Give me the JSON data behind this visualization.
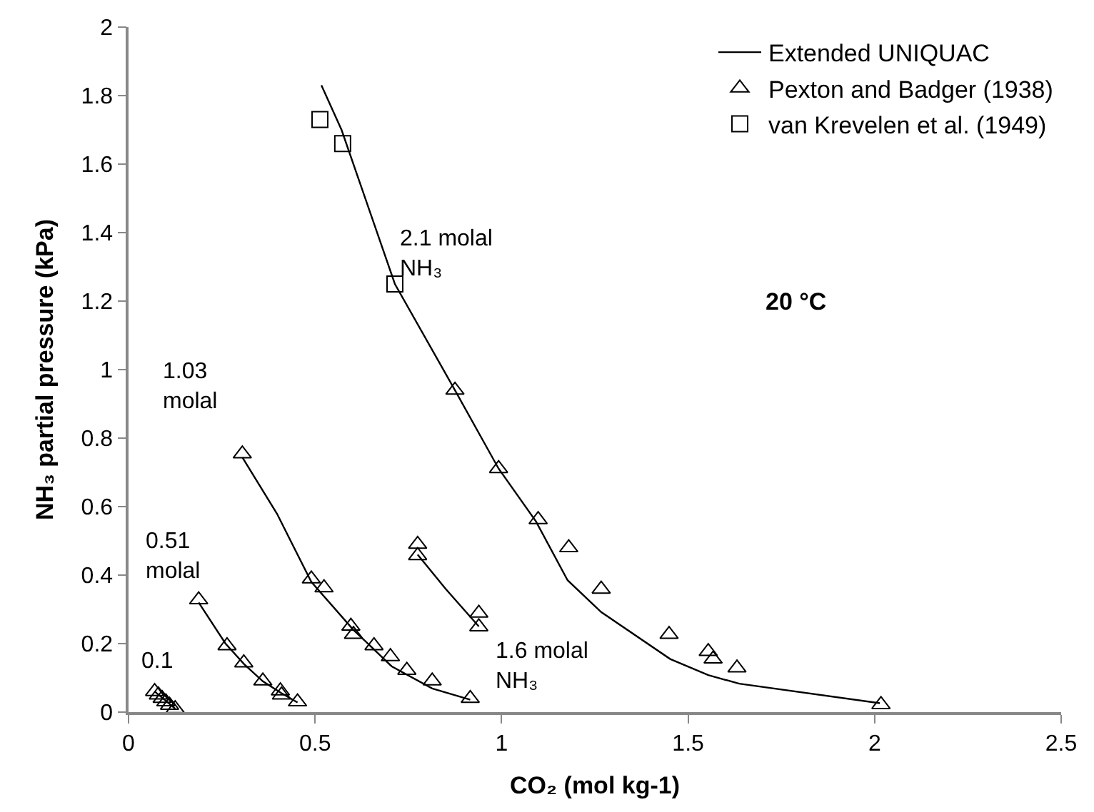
{
  "chart_data": {
    "type": "scatter",
    "xlabel": "CO₂ (mol kg-1)",
    "ylabel": "NH₃ partial pressure (kPa)",
    "xlim": [
      0,
      2.5
    ],
    "xticks": [
      0,
      0.5,
      1,
      1.5,
      2,
      2.5
    ],
    "ylim": [
      0,
      2
    ],
    "yticks": [
      0,
      0.2,
      0.4,
      0.6,
      0.8,
      1,
      1.2,
      1.4,
      1.6,
      1.8,
      2
    ],
    "legend": "top right",
    "series": [
      {
        "name": "Extended UNIQUAC",
        "type": "line",
        "color": "#000000",
        "marker": "none",
        "line_style": "solid",
        "x": [
          0.517,
          0.571,
          0.714,
          0.875,
          0.992,
          1.092,
          1.177,
          1.267,
          1.452,
          1.554,
          1.637,
          2.014
        ],
        "values": [
          1.83,
          1.7,
          1.25,
          0.94,
          0.711,
          0.557,
          0.385,
          0.292,
          0.155,
          0.108,
          0.083,
          0.026
        ]
      },
      {
        "type": "line",
        "color": "#000000",
        "marker": "none",
        "line_style": "solid",
        "x": [
          0.775,
          0.85,
          0.939
        ],
        "values": [
          0.46,
          0.36,
          0.25
        ]
      },
      {
        "type": "line",
        "color": "#000000",
        "marker": "none",
        "line_style": "solid",
        "x": [
          0.305,
          0.398,
          0.49,
          0.603,
          0.705,
          0.814,
          0.916
        ],
        "values": [
          0.744,
          0.579,
          0.38,
          0.24,
          0.134,
          0.069,
          0.036
        ]
      },
      {
        "type": "line",
        "color": "#000000",
        "marker": "none",
        "line_style": "solid",
        "x": [
          0.188,
          0.26,
          0.31,
          0.36,
          0.41,
          0.453
        ],
        "values": [
          0.32,
          0.2,
          0.14,
          0.09,
          0.055,
          0.028
        ]
      },
      {
        "type": "line",
        "color": "#000000",
        "marker": "none",
        "line_style": "solid",
        "x": [
          0.07,
          0.125
        ],
        "values": [
          0.06,
          0.01
        ]
      },
      {
        "name": "Pexton and Badger (1938)",
        "color": "#000000",
        "marker": "triangle",
        "x": [
          0.875,
          0.992,
          1.098,
          1.18,
          1.267,
          1.449,
          1.554,
          1.567,
          1.631,
          2.017,
          0.775,
          0.775,
          0.939,
          0.939,
          0.305,
          0.49,
          0.524,
          0.596,
          0.603,
          0.658,
          0.702,
          0.746,
          0.814,
          0.916,
          0.188,
          0.264,
          0.309,
          0.36,
          0.407,
          0.41,
          0.453,
          0.07,
          0.08,
          0.09,
          0.1,
          0.11,
          0.125
        ],
        "values": [
          0.94,
          0.711,
          0.562,
          0.48,
          0.359,
          0.227,
          0.177,
          0.155,
          0.129,
          0.022,
          0.49,
          0.457,
          0.289,
          0.249,
          0.754,
          0.389,
          0.363,
          0.251,
          0.227,
          0.194,
          0.162,
          0.122,
          0.091,
          0.04,
          0.328,
          0.194,
          0.144,
          0.091,
          0.062,
          0.05,
          0.03,
          0.06,
          0.05,
          0.04,
          0.03,
          0.02,
          0.01
        ]
      },
      {
        "name": "van Krevelen et al. (1949)",
        "color": "#000000",
        "marker": "square",
        "x": [
          0.513,
          0.574,
          0.714
        ],
        "values": [
          1.73,
          1.66,
          1.25
        ]
      }
    ],
    "annotations": [
      "2.1 molal\nNH₃",
      "1.03\nmolal",
      "0.51\nmolal",
      "0.1",
      "1.6 molal\nNH₃",
      "20 °C"
    ]
  }
}
